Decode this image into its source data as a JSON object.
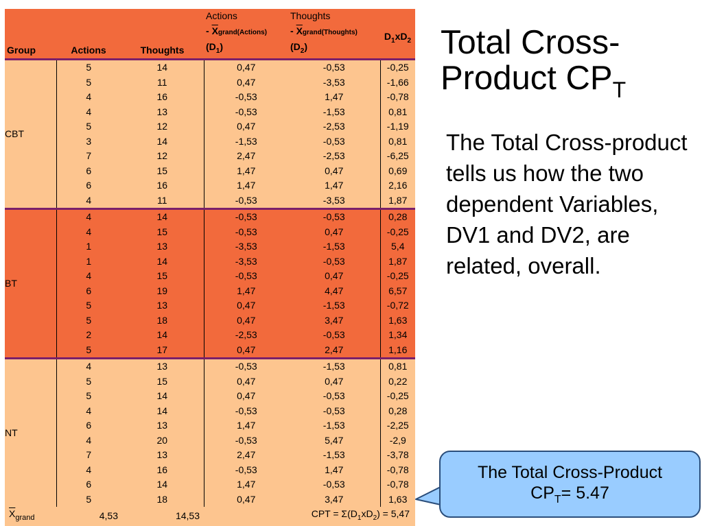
{
  "title": {
    "main": "Total Cross-Product CP",
    "sub": "T"
  },
  "body_text": "The Total Cross-product tells us how the two dependent Variables, DV1 and DV2, are related, overall.",
  "callout": {
    "line1": "The Total Cross-Product",
    "line2_pre": "CP",
    "line2_sub": "T",
    "line2_post": "= 5.47"
  },
  "colors": {
    "dark_band": "#f26a3c",
    "light_band": "#fdc58f",
    "separator": "#7a1f6a",
    "callout_fill": "#99ccff"
  },
  "table": {
    "headers": {
      "group": "Group",
      "actions": "Actions",
      "thoughts": "Thoughts",
      "d1_top": "Actions",
      "d1_mid_pre": "- ",
      "d1_xbar": "X",
      "d1_mid_sub": "grand(Actions)",
      "d1_bot": "(D",
      "d1_bot_sub": "1",
      "d1_bot_end": ")",
      "d2_top": "Thoughts",
      "d2_mid_pre": "- ",
      "d2_xbar": "X",
      "d2_mid_sub": "grand(Thoughts)",
      "d2_bot": "(D",
      "d2_bot_sub": "2",
      "d2_bot_end": ")",
      "prod_a": "D",
      "prod_a_sub": "1",
      "prod_x": "xD",
      "prod_b_sub": "2"
    },
    "groups": [
      {
        "name": "CBT",
        "band": "light",
        "rows": [
          [
            "5",
            "14",
            "0,47",
            "-0,53",
            "-0,25"
          ],
          [
            "5",
            "11",
            "0,47",
            "-3,53",
            "-1,66"
          ],
          [
            "4",
            "16",
            "-0,53",
            "1,47",
            "-0,78"
          ],
          [
            "4",
            "13",
            "-0,53",
            "-1,53",
            "0,81"
          ],
          [
            "5",
            "12",
            "0,47",
            "-2,53",
            "-1,19"
          ],
          [
            "3",
            "14",
            "-1,53",
            "-0,53",
            "0,81"
          ],
          [
            "7",
            "12",
            "2,47",
            "-2,53",
            "-6,25"
          ],
          [
            "6",
            "15",
            "1,47",
            "0,47",
            "0,69"
          ],
          [
            "6",
            "16",
            "1,47",
            "1,47",
            "2,16"
          ],
          [
            "4",
            "11",
            "-0,53",
            "-3,53",
            "1,87"
          ]
        ]
      },
      {
        "name": "BT",
        "band": "dark",
        "rows": [
          [
            "4",
            "14",
            "-0,53",
            "-0,53",
            "0,28"
          ],
          [
            "4",
            "15",
            "-0,53",
            "0,47",
            "-0,25"
          ],
          [
            "1",
            "13",
            "-3,53",
            "-1,53",
            "5,4"
          ],
          [
            "1",
            "14",
            "-3,53",
            "-0,53",
            "1,87"
          ],
          [
            "4",
            "15",
            "-0,53",
            "0,47",
            "-0,25"
          ],
          [
            "6",
            "19",
            "1,47",
            "4,47",
            "6,57"
          ],
          [
            "5",
            "13",
            "0,47",
            "-1,53",
            "-0,72"
          ],
          [
            "5",
            "18",
            "0,47",
            "3,47",
            "1,63"
          ],
          [
            "2",
            "14",
            "-2,53",
            "-0,53",
            "1,34"
          ],
          [
            "5",
            "17",
            "0,47",
            "2,47",
            "1,16"
          ]
        ]
      },
      {
        "name": "NT",
        "band": "light",
        "rows": [
          [
            "4",
            "13",
            "-0,53",
            "-1,53",
            "0,81"
          ],
          [
            "5",
            "15",
            "0,47",
            "0,47",
            "0,22"
          ],
          [
            "5",
            "14",
            "0,47",
            "-0,53",
            "-0,25"
          ],
          [
            "4",
            "14",
            "-0,53",
            "-0,53",
            "0,28"
          ],
          [
            "6",
            "13",
            "1,47",
            "-1,53",
            "-2,25"
          ],
          [
            "4",
            "20",
            "-0,53",
            "5,47",
            "-2,9"
          ],
          [
            "7",
            "13",
            "2,47",
            "-1,53",
            "-3,78"
          ],
          [
            "4",
            "16",
            "-0,53",
            "1,47",
            "-0,78"
          ],
          [
            "6",
            "14",
            "1,47",
            "-0,53",
            "-0,78"
          ],
          [
            "5",
            "18",
            "0,47",
            "3,47",
            "1,63"
          ]
        ]
      }
    ],
    "footer": {
      "label_x": "X",
      "label_sub": "grand",
      "actions_mean": "4,53",
      "thoughts_mean": "14,53",
      "cpt_pre": "CPT = Σ(D",
      "cpt_s1": "1",
      "cpt_mid": "xD",
      "cpt_s2": "2",
      "cpt_post": ") = 5,47"
    }
  }
}
